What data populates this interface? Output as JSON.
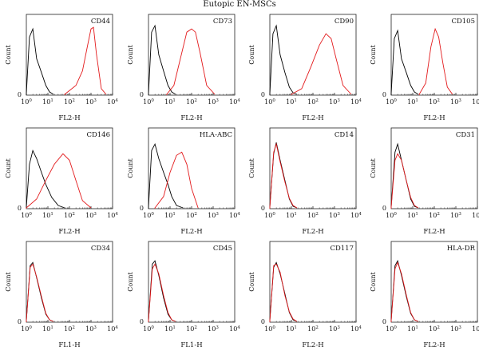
{
  "figure": {
    "title": "Eutopic EN-MSCs"
  },
  "chart_data": {
    "type": "line",
    "title": "Eutopic EN-MSCs",
    "x_scale": "log",
    "xlim": [
      1,
      10000
    ],
    "x_ticks": [
      {
        "value": 1,
        "label": "10",
        "exp": "0"
      },
      {
        "value": 10,
        "label": "10",
        "exp": "1"
      },
      {
        "value": 100,
        "label": "10",
        "exp": "2"
      },
      {
        "value": 1000,
        "label": "10",
        "exp": "3"
      },
      {
        "value": 10000,
        "label": "10",
        "exp": "4"
      }
    ],
    "y_tick_label": "0",
    "ylim": [
      0,
      1
    ],
    "series_colors": {
      "control": "#000000",
      "marker": "#e31a1c"
    },
    "panels": [
      {
        "marker": "CD44",
        "xlabel": "FL2-H",
        "ylabel": "Count",
        "control": {
          "x": [
            1,
            1.4,
            2,
            3,
            5,
            8,
            12,
            18
          ],
          "y": [
            0.02,
            0.72,
            0.82,
            0.45,
            0.28,
            0.12,
            0.04,
            0.01
          ]
        },
        "stained": {
          "x": [
            60,
            200,
            400,
            700,
            1000,
            1300,
            1800,
            3000,
            5000
          ],
          "y": [
            0.01,
            0.12,
            0.3,
            0.62,
            0.82,
            0.84,
            0.5,
            0.08,
            0.01
          ]
        }
      },
      {
        "marker": "CD73",
        "xlabel": "FL2-H",
        "ylabel": "Count",
        "control": {
          "x": [
            1,
            1.4,
            2,
            3,
            5,
            8,
            12,
            18
          ],
          "y": [
            0.02,
            0.78,
            0.86,
            0.5,
            0.3,
            0.12,
            0.04,
            0.01
          ]
        },
        "stained": {
          "x": [
            7,
            15,
            30,
            60,
            100,
            150,
            250,
            500,
            1200
          ],
          "y": [
            0.01,
            0.12,
            0.45,
            0.78,
            0.82,
            0.78,
            0.52,
            0.12,
            0.01
          ]
        }
      },
      {
        "marker": "CD90",
        "xlabel": "FL2-H",
        "ylabel": "Count",
        "control": {
          "x": [
            1,
            1.4,
            2,
            3,
            5,
            8,
            12,
            18
          ],
          "y": [
            0.02,
            0.76,
            0.86,
            0.5,
            0.28,
            0.1,
            0.03,
            0.01
          ]
        },
        "stained": {
          "x": [
            10,
            30,
            80,
            200,
            400,
            700,
            1200,
            2500,
            6000
          ],
          "y": [
            0.01,
            0.08,
            0.35,
            0.62,
            0.76,
            0.7,
            0.45,
            0.12,
            0.01
          ]
        }
      },
      {
        "marker": "CD105",
        "xlabel": "FL2-H",
        "ylabel": "Count",
        "control": {
          "x": [
            1,
            1.4,
            2,
            3,
            5,
            8,
            12,
            18
          ],
          "y": [
            0.02,
            0.7,
            0.8,
            0.45,
            0.28,
            0.12,
            0.04,
            0.01
          ]
        },
        "stained": {
          "x": [
            20,
            40,
            70,
            110,
            160,
            250,
            400,
            700
          ],
          "y": [
            0.01,
            0.15,
            0.6,
            0.82,
            0.72,
            0.4,
            0.1,
            0.01
          ]
        }
      },
      {
        "marker": "CD146",
        "xlabel": "FL2-H",
        "ylabel": "Count",
        "control": {
          "x": [
            1,
            1.4,
            2,
            3,
            5,
            8,
            15,
            30,
            60
          ],
          "y": [
            0.02,
            0.55,
            0.72,
            0.62,
            0.45,
            0.3,
            0.14,
            0.04,
            0.01
          ]
        },
        "stained": {
          "x": [
            1,
            3,
            8,
            20,
            50,
            100,
            200,
            400,
            1000
          ],
          "y": [
            0.01,
            0.12,
            0.35,
            0.55,
            0.68,
            0.6,
            0.35,
            0.1,
            0.01
          ]
        }
      },
      {
        "marker": "HLA-ABC",
        "xlabel": "FL2-H",
        "ylabel": "Count",
        "control": {
          "x": [
            1,
            1.4,
            2,
            3,
            5,
            8,
            12,
            20,
            40
          ],
          "y": [
            0.02,
            0.72,
            0.8,
            0.62,
            0.45,
            0.3,
            0.15,
            0.04,
            0.01
          ]
        },
        "stained": {
          "x": [
            2,
            5,
            10,
            20,
            35,
            60,
            100,
            200
          ],
          "y": [
            0.01,
            0.15,
            0.45,
            0.66,
            0.7,
            0.55,
            0.25,
            0.01
          ]
        }
      },
      {
        "marker": "CD14",
        "xlabel": "FL2-H",
        "ylabel": "Count",
        "control": {
          "x": [
            1,
            1.5,
            2,
            3,
            5,
            8,
            12,
            18
          ],
          "y": [
            0.02,
            0.68,
            0.82,
            0.6,
            0.35,
            0.12,
            0.03,
            0.01
          ]
        },
        "stained": {
          "x": [
            1,
            1.5,
            2,
            3,
            5,
            8,
            12,
            18
          ],
          "y": [
            0.02,
            0.7,
            0.8,
            0.58,
            0.33,
            0.13,
            0.04,
            0.01
          ]
        }
      },
      {
        "marker": "CD31",
        "xlabel": "FL2-H",
        "ylabel": "Count",
        "control": {
          "x": [
            1,
            1.5,
            2,
            3,
            5,
            8,
            12,
            18
          ],
          "y": [
            0.02,
            0.7,
            0.8,
            0.6,
            0.35,
            0.12,
            0.03,
            0.01
          ]
        },
        "stained": {
          "x": [
            1,
            1.5,
            2,
            3,
            5,
            8,
            12,
            18
          ],
          "y": [
            0.02,
            0.6,
            0.68,
            0.6,
            0.35,
            0.14,
            0.04,
            0.01
          ]
        }
      },
      {
        "marker": "CD34",
        "xlabel": "FL1-H",
        "ylabel": "Count",
        "control": {
          "x": [
            1,
            1.5,
            2,
            3,
            5,
            8,
            12,
            18
          ],
          "y": [
            0.02,
            0.7,
            0.74,
            0.55,
            0.3,
            0.1,
            0.03,
            0.01
          ]
        },
        "stained": {
          "x": [
            1,
            1.5,
            2,
            3,
            5,
            8,
            12,
            18
          ],
          "y": [
            0.02,
            0.68,
            0.72,
            0.56,
            0.32,
            0.11,
            0.03,
            0.01
          ]
        }
      },
      {
        "marker": "CD45",
        "xlabel": "FL1-H",
        "ylabel": "Count",
        "control": {
          "x": [
            1,
            1.5,
            2,
            3,
            5,
            8,
            12,
            18
          ],
          "y": [
            0.02,
            0.72,
            0.76,
            0.58,
            0.3,
            0.1,
            0.03,
            0.01
          ]
        },
        "stained": {
          "x": [
            1,
            1.5,
            2,
            3,
            5,
            8,
            12,
            18
          ],
          "y": [
            0.02,
            0.66,
            0.72,
            0.6,
            0.33,
            0.12,
            0.03,
            0.01
          ]
        }
      },
      {
        "marker": "CD117",
        "xlabel": "FL2-H",
        "ylabel": "Count",
        "control": {
          "x": [
            1,
            1.5,
            2,
            3,
            5,
            8,
            12,
            18
          ],
          "y": [
            0.02,
            0.68,
            0.74,
            0.6,
            0.35,
            0.12,
            0.03,
            0.01
          ]
        },
        "stained": {
          "x": [
            1,
            1.5,
            2,
            3,
            5,
            8,
            12,
            18
          ],
          "y": [
            0.02,
            0.7,
            0.72,
            0.62,
            0.33,
            0.13,
            0.04,
            0.01
          ]
        }
      },
      {
        "marker": "HLA-DR",
        "xlabel": "FL2-H",
        "ylabel": "Count",
        "control": {
          "x": [
            1,
            1.5,
            2,
            3,
            5,
            8,
            12,
            18
          ],
          "y": [
            0.02,
            0.7,
            0.76,
            0.58,
            0.32,
            0.11,
            0.03,
            0.01
          ]
        },
        "stained": {
          "x": [
            1,
            1.5,
            2,
            3,
            5,
            8,
            12,
            18
          ],
          "y": [
            0.02,
            0.66,
            0.74,
            0.6,
            0.34,
            0.12,
            0.03,
            0.01
          ]
        }
      }
    ]
  }
}
